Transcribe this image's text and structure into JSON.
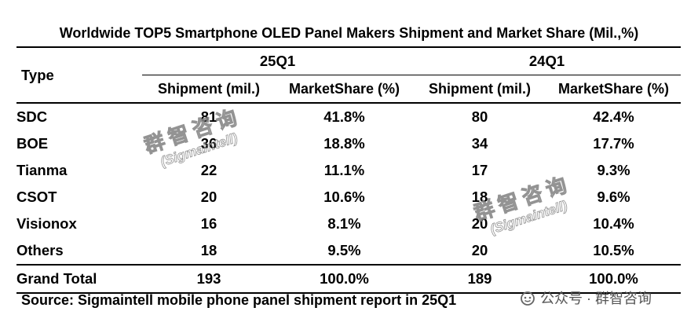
{
  "title": "Worldwide TOP5 Smartphone OLED Panel Makers Shipment and Market Share (Mil.,%)",
  "table": {
    "type_header": "Type",
    "periods": [
      "25Q1",
      "24Q1"
    ],
    "subheaders": [
      "Shipment (mil.)",
      "MarketShare (%)",
      "Shipment (mil.)",
      "MarketShare (%)"
    ],
    "rows": [
      {
        "name": "SDC",
        "cells": [
          "81",
          "41.8%",
          "80",
          "42.4%"
        ]
      },
      {
        "name": "BOE",
        "cells": [
          "36",
          "18.8%",
          "34",
          "17.7%"
        ]
      },
      {
        "name": "Tianma",
        "cells": [
          "22",
          "11.1%",
          "17",
          "9.3%"
        ]
      },
      {
        "name": "CSOT",
        "cells": [
          "20",
          "10.6%",
          "18",
          "9.6%"
        ]
      },
      {
        "name": "Visionox",
        "cells": [
          "16",
          "8.1%",
          "20",
          "10.4%"
        ]
      },
      {
        "name": "Others",
        "cells": [
          "18",
          "9.5%",
          "20",
          "10.5%"
        ]
      },
      {
        "name": "Grand Total",
        "cells": [
          "193",
          "100.0%",
          "189",
          "100.0%"
        ]
      }
    ]
  },
  "source": "Source: Sigmaintell mobile phone panel shipment report in 25Q1",
  "wechat_label": "公众号 · 群智咨询",
  "watermark": {
    "cn": "群智咨询",
    "en": "(Sigmaintell)"
  }
}
